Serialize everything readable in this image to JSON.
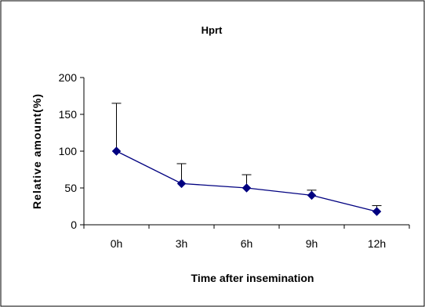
{
  "chart_data": {
    "type": "line",
    "title": "Hprt",
    "xlabel": "Time after insemination",
    "ylabel": "Relative amount(%)",
    "categories": [
      "0h",
      "3h",
      "6h",
      "9h",
      "12h"
    ],
    "series": [
      {
        "values": [
          100,
          56,
          50,
          40,
          18
        ],
        "error_upper": [
          65,
          27,
          18,
          7,
          8
        ]
      }
    ],
    "ylim": [
      0,
      200
    ],
    "yticks": [
      "0",
      "50",
      "100",
      "150",
      "200"
    ],
    "grid": false,
    "legend": "none",
    "colors": {
      "series": "#000080",
      "error_bars": "#000000",
      "axes": "#000000",
      "border": "#000000"
    }
  }
}
